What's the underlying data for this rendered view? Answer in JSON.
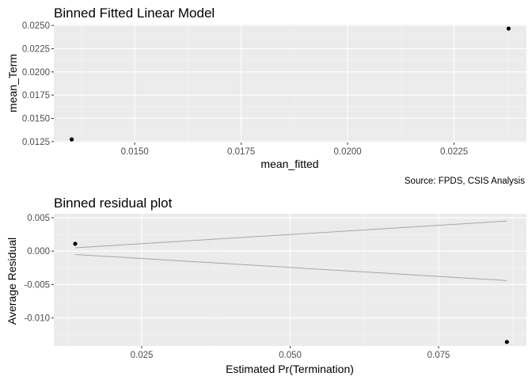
{
  "chart_data": [
    {
      "type": "scatter",
      "title": "Binned Fitted Linear Model",
      "xlabel": "mean_fitted",
      "ylabel": "mean_Term",
      "xlim": [
        0.0131,
        0.0242
      ],
      "ylim": [
        0.0124,
        0.0251
      ],
      "xticks": [
        "0.0150",
        "0.0175",
        "0.0200",
        "0.0225"
      ],
      "xtick_values": [
        0.015,
        0.0175,
        0.02,
        0.0225
      ],
      "yticks": [
        "0.0125",
        "0.0150",
        "0.0175",
        "0.0200",
        "0.0225",
        "0.0250"
      ],
      "ytick_values": [
        0.0125,
        0.015,
        0.0175,
        0.02,
        0.0225,
        0.025
      ],
      "points": [
        {
          "x": 0.01352,
          "y": 0.01273
        },
        {
          "x": 0.02378,
          "y": 0.02467
        }
      ],
      "grid": true,
      "caption": "Source: FPDS, CSIS Analysis"
    },
    {
      "type": "scatter",
      "title": "Binned residual plot",
      "xlabel": "Estimated Pr(Termination)",
      "ylabel": "Average Residual",
      "xlim": [
        0.0102,
        0.0898
      ],
      "ylim": [
        -0.0142,
        0.0056
      ],
      "xticks": [
        "0.025",
        "0.050",
        "0.075"
      ],
      "xtick_values": [
        0.025,
        0.05,
        0.075
      ],
      "yticks": [
        "0.005",
        "0.000",
        "-0.005",
        "-0.010"
      ],
      "ytick_values": [
        0.005,
        0.0,
        -0.005,
        -0.01
      ],
      "points": [
        {
          "x": 0.0138,
          "y": 0.0011
        },
        {
          "x": 0.0865,
          "y": -0.0136
        }
      ],
      "bands": [
        {
          "x": [
            0.0138,
            0.0865
          ],
          "y": [
            0.0005,
            0.0045
          ]
        },
        {
          "x": [
            0.0138,
            0.0865
          ],
          "y": [
            -0.0005,
            -0.0044
          ]
        }
      ],
      "grid": true
    }
  ],
  "colors": {
    "panel_bg": "#ebebeb",
    "grid_major": "#ffffff",
    "grid_minor": "#f5f5f5",
    "point": "#000000",
    "band": "#a6a6a6",
    "tick_text": "#4d4d4d"
  }
}
